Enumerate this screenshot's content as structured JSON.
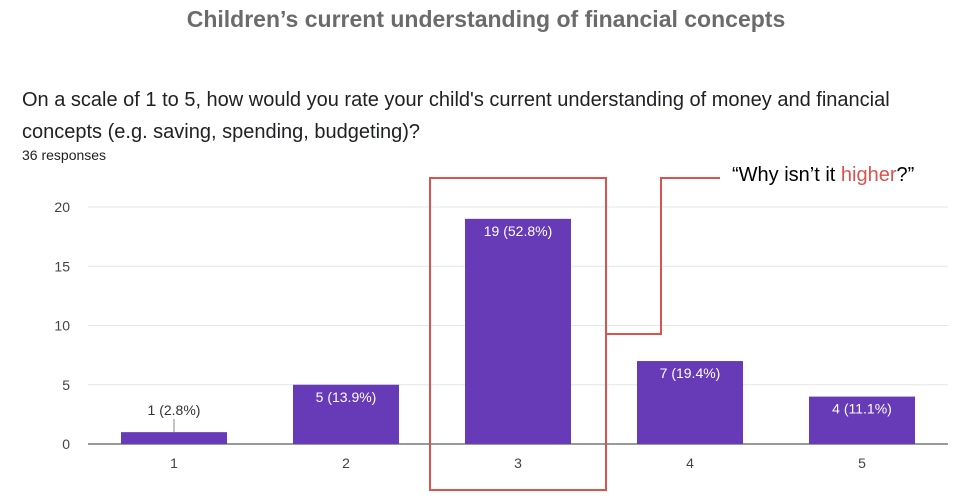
{
  "title": "Children’s current understanding of financial concepts",
  "question": "On a scale of 1 to 5, how would you rate your child's current understanding of money and financial concepts (e.g. saving, spending, budgeting)?",
  "responses": "36 responses",
  "callout": {
    "before": "“Why isn’t it ",
    "highlight": "higher",
    "after": "?”"
  },
  "colors": {
    "bar": "#673ab7",
    "highlight_box": "#d9534f",
    "callout_word": "#d9534f",
    "grid": "#e6e6e6"
  },
  "chart_data": {
    "type": "bar",
    "categories": [
      "1",
      "2",
      "3",
      "4",
      "5"
    ],
    "values": [
      1,
      5,
      19,
      7,
      4
    ],
    "data_labels": [
      "1 (2.8%)",
      "5 (13.9%)",
      "19 (52.8%)",
      "7 (19.4%)",
      "4 (11.1%)"
    ],
    "yticks": [
      "0",
      "5",
      "10",
      "15",
      "20"
    ],
    "ylim": [
      0,
      20
    ],
    "grid": true,
    "highlighted_category": "3"
  }
}
